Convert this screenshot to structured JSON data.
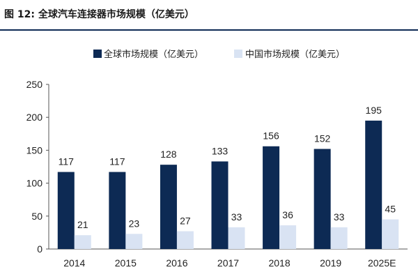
{
  "figure": {
    "title": "图 12:  全球汽车连接器市场规模（亿美元）"
  },
  "chart_data": {
    "type": "bar",
    "categories": [
      "2014",
      "2015",
      "2016",
      "2017",
      "2018",
      "2019",
      "2025E"
    ],
    "series": [
      {
        "name": "全球市场规模（亿美元）",
        "values": [
          117,
          117,
          128,
          133,
          156,
          152,
          195
        ],
        "color": "#0d2a54"
      },
      {
        "name": "中国市场规模（亿美元）",
        "values": [
          21,
          23,
          27,
          33,
          36,
          33,
          45
        ],
        "color": "#d9e3f3"
      }
    ],
    "ylim": [
      0,
      250
    ],
    "yticks": [
      0,
      50,
      100,
      150,
      200,
      250
    ],
    "grid": false,
    "legend_position": "top-center",
    "data_labels": true
  }
}
